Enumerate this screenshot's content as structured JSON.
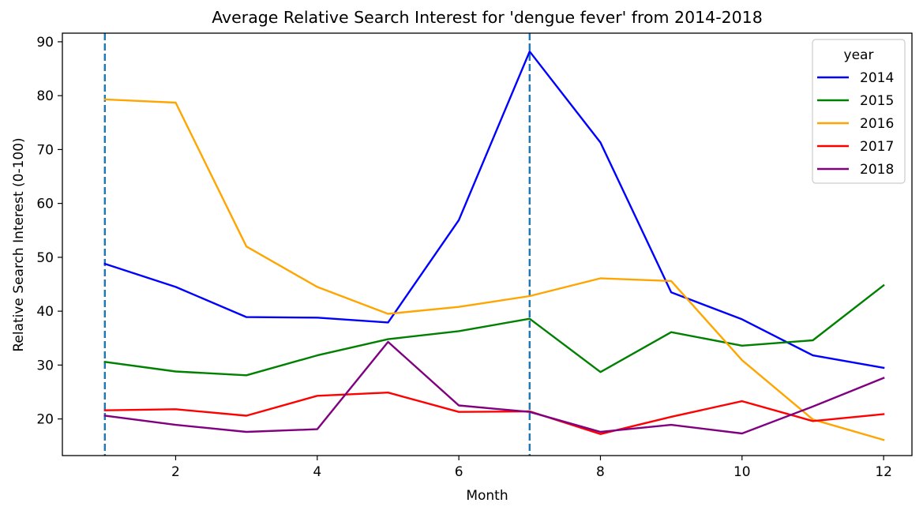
{
  "chart_data": {
    "type": "line",
    "title": "Average Relative Search Interest for 'dengue fever' from 2014-2018",
    "xlabel": "Month",
    "ylabel": "Relative Search Interest (0-100)",
    "xlim": [
      0.4,
      12.4
    ],
    "ylim": [
      13.2,
      91.6
    ],
    "xticks": [
      2,
      4,
      6,
      8,
      10,
      12
    ],
    "yticks": [
      20,
      30,
      40,
      50,
      60,
      70,
      80,
      90
    ],
    "x": [
      1,
      2,
      3,
      4,
      5,
      6,
      7,
      8,
      9,
      10,
      11,
      12
    ],
    "vlines": [
      {
        "x": 1,
        "color": "#1f77b4",
        "style": "dashed"
      },
      {
        "x": 7,
        "color": "#1f77b4",
        "style": "dashed"
      }
    ],
    "legend": {
      "title": "year",
      "placement": "upper right"
    },
    "series": [
      {
        "name": "2014",
        "color": "#0000ff",
        "values": [
          48.8,
          44.5,
          38.9,
          38.8,
          37.9,
          56.9,
          88.2,
          71.3,
          43.5,
          38.5,
          31.8,
          29.5
        ]
      },
      {
        "name": "2015",
        "color": "#008000",
        "values": [
          30.6,
          28.8,
          28.1,
          31.8,
          34.8,
          36.3,
          38.6,
          28.7,
          36.1,
          33.6,
          34.6,
          44.8
        ]
      },
      {
        "name": "2016",
        "color": "#ffa500",
        "values": [
          79.3,
          78.7,
          52.0,
          44.5,
          39.5,
          40.8,
          42.8,
          46.1,
          45.6,
          30.9,
          19.9,
          16.1
        ]
      },
      {
        "name": "2017",
        "color": "#ff0000",
        "values": [
          21.6,
          21.8,
          20.6,
          24.3,
          24.9,
          21.3,
          21.4,
          17.2,
          20.4,
          23.3,
          19.6,
          20.9
        ]
      },
      {
        "name": "2018",
        "color": "#800080",
        "values": [
          20.6,
          18.9,
          17.6,
          18.1,
          34.3,
          22.5,
          21.3,
          17.6,
          18.9,
          17.3,
          22.3,
          27.6
        ]
      }
    ]
  }
}
